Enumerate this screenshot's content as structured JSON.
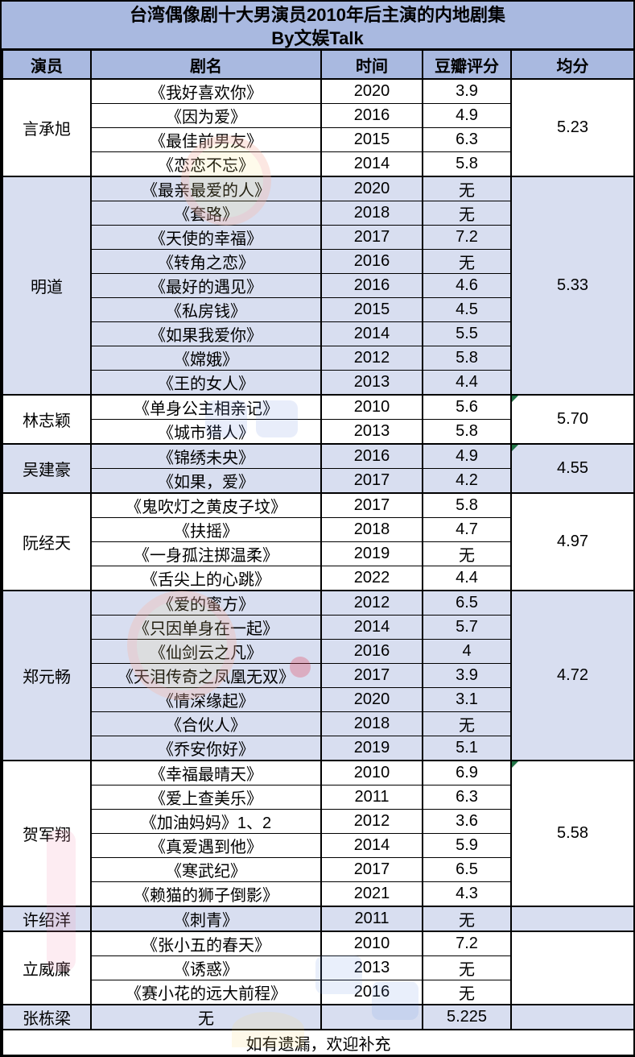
{
  "chart_data": {
    "type": "table",
    "title": "台湾偶像剧十大男演员2010年后主演的内地剧集",
    "subtitle": "By文娱Talk",
    "columns": [
      "演员",
      "剧名",
      "时间",
      "豆瓣评分",
      "均分"
    ],
    "footer": "如有遗漏，欢迎补充",
    "groups": [
      {
        "name": "言承旭",
        "avg": "5.23",
        "shaded": false,
        "avg_flag": false,
        "dramas": [
          {
            "title": "《我好喜欢你》",
            "year": "2020",
            "rating": "3.9"
          },
          {
            "title": "《因为爱》",
            "year": "2016",
            "rating": "4.9"
          },
          {
            "title": "《最佳前男友》",
            "year": "2015",
            "rating": "6.3"
          },
          {
            "title": "《恋恋不忘》",
            "year": "2014",
            "rating": "5.8"
          }
        ]
      },
      {
        "name": "明道",
        "avg": "5.33",
        "shaded": true,
        "avg_flag": false,
        "dramas": [
          {
            "title": "《最亲最爱的人》",
            "year": "2020",
            "rating": "无"
          },
          {
            "title": "《套路》",
            "year": "2018",
            "rating": "无"
          },
          {
            "title": "《天使的幸福》",
            "year": "2017",
            "rating": "7.2"
          },
          {
            "title": "《转角之恋》",
            "year": "2016",
            "rating": "无"
          },
          {
            "title": "《最好的遇见》",
            "year": "2016",
            "rating": "4.6"
          },
          {
            "title": "《私房钱》",
            "year": "2015",
            "rating": "4.5"
          },
          {
            "title": "《如果我爱你》",
            "year": "2014",
            "rating": "5.5"
          },
          {
            "title": "《嫦娥》",
            "year": "2012",
            "rating": "5.8"
          },
          {
            "title": "《王的女人》",
            "year": "2013",
            "rating": "4.4"
          }
        ]
      },
      {
        "name": "林志颖",
        "avg": "5.70",
        "shaded": false,
        "avg_flag": true,
        "dramas": [
          {
            "title": "《单身公主相亲记》",
            "year": "2010",
            "rating": "5.6"
          },
          {
            "title": "《城市猎人》",
            "year": "2013",
            "rating": "5.8"
          }
        ]
      },
      {
        "name": "吴建豪",
        "avg": "4.55",
        "shaded": true,
        "avg_flag": true,
        "dramas": [
          {
            "title": "《锦绣未央》",
            "year": "2016",
            "rating": "4.9"
          },
          {
            "title": "《如果，爱》",
            "year": "2017",
            "rating": "4.2"
          }
        ]
      },
      {
        "name": "阮经天",
        "avg": "4.97",
        "shaded": false,
        "avg_flag": false,
        "dramas": [
          {
            "title": "《鬼吹灯之黄皮子坟》",
            "year": "2017",
            "rating": "5.8"
          },
          {
            "title": "《扶摇》",
            "year": "2018",
            "rating": "4.7"
          },
          {
            "title": "《一身孤注掷温柔》",
            "year": "2019",
            "rating": "无"
          },
          {
            "title": "《舌尖上的心跳》",
            "year": "2022",
            "rating": "4.4"
          }
        ]
      },
      {
        "name": "郑元畅",
        "avg": "4.72",
        "shaded": true,
        "avg_flag": false,
        "dramas": [
          {
            "title": "《爱的蜜方》",
            "year": "2012",
            "rating": "6.5"
          },
          {
            "title": "《只因单身在一起》",
            "year": "2014",
            "rating": "5.7"
          },
          {
            "title": "《仙剑云之凡》",
            "year": "2016",
            "rating": "4"
          },
          {
            "title": "《天泪传奇之凤凰无双》",
            "year": "2017",
            "rating": "3.9"
          },
          {
            "title": "《情深缘起》",
            "year": "2020",
            "rating": "3.1"
          },
          {
            "title": "《合伙人》",
            "year": "2018",
            "rating": "无"
          },
          {
            "title": "《乔安你好》",
            "year": "2019",
            "rating": "5.1"
          }
        ]
      },
      {
        "name": "贺军翔",
        "avg": "5.58",
        "shaded": false,
        "avg_flag": true,
        "dramas": [
          {
            "title": "《幸福最晴天》",
            "year": "2010",
            "rating": "6.9"
          },
          {
            "title": "《爱上查美乐》",
            "year": "2011",
            "rating": "6.3"
          },
          {
            "title": "《加油妈妈》1、2",
            "year": "2012",
            "rating": "3.6"
          },
          {
            "title": "《真爱遇到他》",
            "year": "2014",
            "rating": "5.9"
          },
          {
            "title": "《寒武纪》",
            "year": "2017",
            "rating": "6.5"
          },
          {
            "title": "《赖猫的狮子倒影》",
            "year": "2021",
            "rating": "4.3"
          }
        ]
      },
      {
        "name": "许绍洋",
        "avg": "",
        "shaded": true,
        "avg_flag": false,
        "dramas": [
          {
            "title": "《刺青》",
            "year": "2011",
            "rating": "无"
          }
        ]
      },
      {
        "name": "立威廉",
        "avg": "",
        "shaded": false,
        "avg_flag": false,
        "dramas": [
          {
            "title": "《张小五的春天》",
            "year": "2010",
            "rating": "7.2"
          },
          {
            "title": "《诱惑》",
            "year": "2013",
            "rating": "无"
          },
          {
            "title": "《赛小花的远大前程》",
            "year": "2016",
            "rating": "无"
          }
        ]
      },
      {
        "name": "张栋梁",
        "avg": "",
        "shaded": true,
        "avg_flag": false,
        "dramas": [
          {
            "title": "无",
            "year": "",
            "rating": "5.225"
          }
        ]
      }
    ]
  },
  "colors": {
    "header_bg": "#a9b9e0",
    "band_bg": "#d8def0",
    "border": "#000000",
    "flag_green": "#217346"
  }
}
